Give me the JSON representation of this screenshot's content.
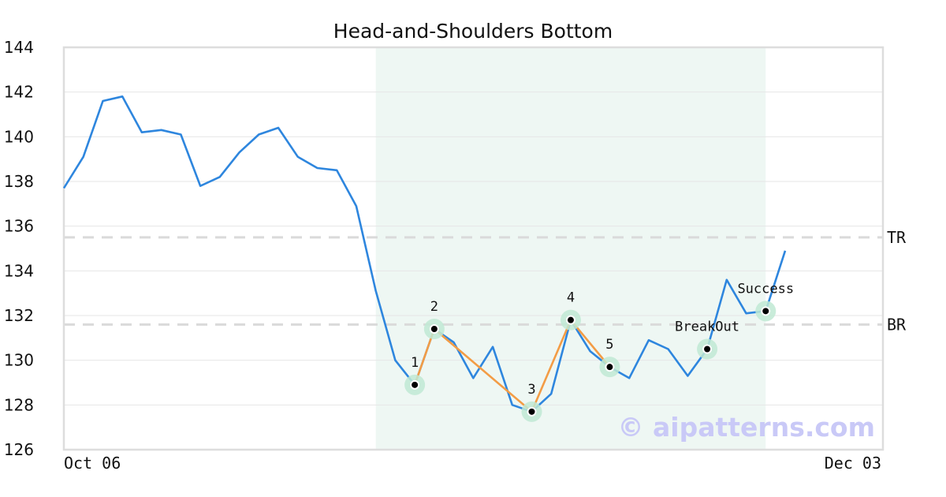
{
  "chart_data": {
    "type": "line",
    "title": "Head-and-Shoulders Bottom",
    "xlabel": "",
    "ylabel": "",
    "ylim": [
      126,
      144
    ],
    "yticks": [
      126,
      128,
      130,
      132,
      134,
      136,
      138,
      140,
      142,
      144
    ],
    "xtick_labels": [
      "Oct 06",
      "Dec 03"
    ],
    "grid": "horizontal",
    "series": [
      {
        "color": "#2e86de",
        "values": [
          137.7,
          139.1,
          141.6,
          141.8,
          140.2,
          140.3,
          140.1,
          137.8,
          138.2,
          139.3,
          140.1,
          140.4,
          139.1,
          138.6,
          138.5,
          136.9,
          133.1,
          130.0,
          128.9,
          131.4,
          130.8,
          129.2,
          130.6,
          128.0,
          127.7,
          128.5,
          131.8,
          130.4,
          129.7,
          129.2,
          130.9,
          130.5,
          129.3,
          130.5,
          133.6,
          132.1,
          132.2,
          134.9
        ]
      }
    ],
    "pattern": {
      "color": "#f39c45",
      "points": [
        {
          "label": "1",
          "index": 18,
          "value": 128.9
        },
        {
          "label": "2",
          "index": 19,
          "value": 131.4
        },
        {
          "label": "3",
          "index": 24,
          "value": 127.7
        },
        {
          "label": "4",
          "index": 26,
          "value": 131.8
        },
        {
          "label": "5",
          "index": 28,
          "value": 129.7
        }
      ]
    },
    "markers": [
      {
        "label": "BreakOut",
        "index": 33,
        "value": 130.5
      },
      {
        "label": "Success",
        "index": 36,
        "value": 132.2
      }
    ],
    "highlight_range": {
      "start_index": 16,
      "end_index": 36,
      "color": "#eef7f3"
    },
    "levels": [
      {
        "label": "TR",
        "value": 135.5
      },
      {
        "label": "BR",
        "value": 131.6
      }
    ],
    "watermark": "© aipatterns.com"
  }
}
